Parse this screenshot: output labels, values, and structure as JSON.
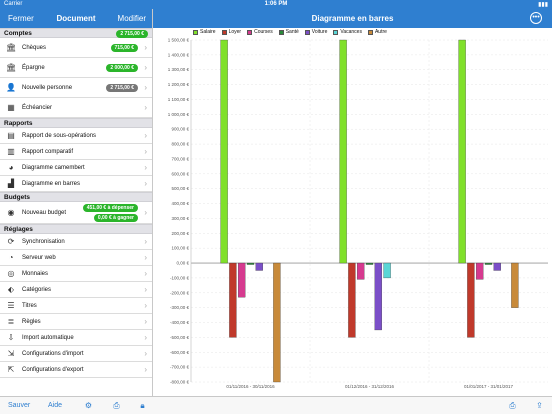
{
  "status": {
    "carrier": "Carrier",
    "time": "1:06 PM",
    "battery": "100%"
  },
  "nav_left": {
    "close": "Fermer",
    "title": "Document",
    "edit": "Modifier"
  },
  "nav_right": {
    "title": "Diagramme en barres",
    "more_icon": "ellipsis-icon"
  },
  "sections": {
    "comptes": {
      "title": "Comptes",
      "total": "2 715,00 €"
    },
    "rapports": {
      "title": "Rapports"
    },
    "budgets": {
      "title": "Budgets"
    },
    "reglages": {
      "title": "Réglages"
    }
  },
  "accounts": [
    {
      "label": "Chèques",
      "amount": "715,00 €",
      "color": "#2bb52b",
      "icon": "bank-icon"
    },
    {
      "label": "Épargne",
      "amount": "2 000,00 €",
      "color": "#2bb52b",
      "icon": "bank-icon"
    },
    {
      "label": "Nouvelle personne",
      "amount": "2 715,00 €",
      "color": "#777777",
      "icon": "person-icon"
    },
    {
      "label": "Échéancier",
      "icon": "calendar-icon"
    }
  ],
  "reports": [
    {
      "label": "Rapport de sous-opérations",
      "icon": "report-icon"
    },
    {
      "label": "Rapport comparatif",
      "icon": "compare-icon"
    },
    {
      "label": "Diagramme camembert",
      "icon": "pie-icon"
    },
    {
      "label": "Diagramme en barres",
      "icon": "bar-chart-icon"
    }
  ],
  "budget": {
    "label": "Nouveau budget",
    "line1": "451,00 € à dépenser",
    "line2": "0,00 € à gagner"
  },
  "settings": [
    {
      "label": "Synchronisation",
      "icon": "sync-icon"
    },
    {
      "label": "Serveur web",
      "icon": "wifi-icon"
    },
    {
      "label": "Monnaies",
      "icon": "coins-icon"
    },
    {
      "label": "Catégories",
      "icon": "tag-icon"
    },
    {
      "label": "Titres",
      "icon": "list-icon"
    },
    {
      "label": "Règles",
      "icon": "rules-icon"
    },
    {
      "label": "Import automatique",
      "icon": "import-icon"
    },
    {
      "label": "Configurations d'import",
      "icon": "import-config-icon"
    },
    {
      "label": "Configurations d'export",
      "icon": "export-config-icon"
    }
  ],
  "toolbar": {
    "save": "Sauver",
    "help": "Aide"
  },
  "chart_data": {
    "type": "bar",
    "categories": [
      "01/11/2016 - 30/11/2016",
      "01/12/2016 - 31/12/2016",
      "01/01/2017 - 31/01/2017"
    ],
    "series": [
      {
        "name": "Salaire",
        "color": "#80e02a",
        "values": [
          1500,
          1500,
          1500
        ]
      },
      {
        "name": "Loyer",
        "color": "#c0392b",
        "values": [
          -500,
          -500,
          -500
        ]
      },
      {
        "name": "Courses",
        "color": "#d63a8f",
        "values": [
          -230,
          -110,
          -110
        ]
      },
      {
        "name": "Santé",
        "color": "#2a8a3a",
        "values": [
          -10,
          -10,
          -10
        ]
      },
      {
        "name": "Voiture",
        "color": "#7b4fc8",
        "values": [
          -50,
          -450,
          -50
        ]
      },
      {
        "name": "Vacances",
        "color": "#5bd6d6",
        "values": [
          0,
          -100,
          0
        ]
      },
      {
        "name": "Autre",
        "color": "#c88a3a",
        "values": [
          -800,
          0,
          -300
        ]
      }
    ],
    "ylim": [
      -800,
      1500
    ],
    "ytick_step": 100,
    "ytick_labels": [
      "1 500,00 €",
      "1 400,00 €",
      "1 300,00 €",
      "1 200,00 €",
      "1 100,00 €",
      "1 000,00 €",
      "900,00 €",
      "800,00 €",
      "700,00 €",
      "600,00 €",
      "500,00 €",
      "400,00 €",
      "300,00 €",
      "200,00 €",
      "100,00 €",
      "0,00 €",
      "-100,00 €",
      "-200,00 €",
      "-300,00 €",
      "-400,00 €",
      "-500,00 €",
      "-600,00 €",
      "-700,00 €",
      "-800,00 €"
    ],
    "grid": true,
    "legend_position": "top"
  }
}
